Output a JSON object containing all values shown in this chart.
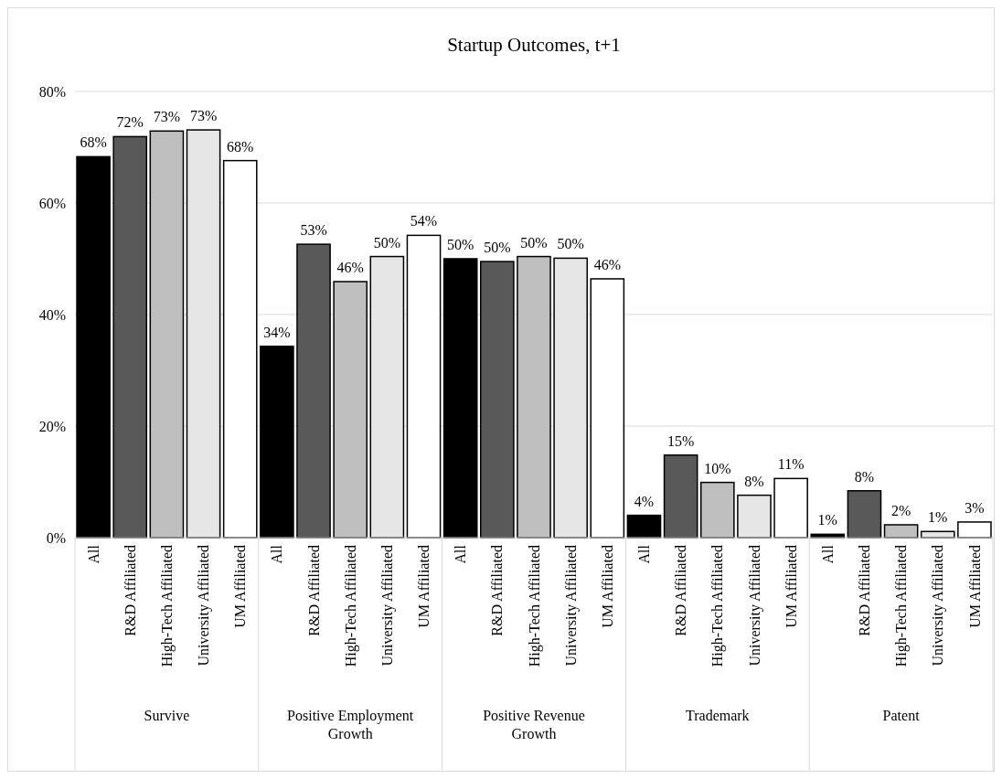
{
  "chart_data": {
    "type": "bar",
    "title": "Startup Outcomes, t+1",
    "categories": [
      "All",
      "R&D Affiliated",
      "High-Tech Affiliated",
      "University Affiliated",
      "UM Affiliated",
      "All",
      "R&D Affiliated",
      "High-Tech Affiliated",
      "University Affiliated",
      "UM Affiliated",
      "All",
      "R&D Affiliated",
      "High-Tech Affiliated",
      "University Affiliated",
      "UM Affiliated",
      "All",
      "R&D Affiliated",
      "High-Tech Affiliated",
      "University Affiliated",
      "UM Affiliated",
      "All",
      "R&D Affiliated",
      "High-Tech Affiliated",
      "University Affiliated",
      "UM Affiliated"
    ],
    "values": [
      68.3,
      71.9,
      72.9,
      73.1,
      67.6,
      34.3,
      52.6,
      45.9,
      50.4,
      54.2,
      50.0,
      49.5,
      50.4,
      50.1,
      46.4,
      4.0,
      14.8,
      9.9,
      7.6,
      10.6,
      0.6,
      8.4,
      2.3,
      1.1,
      2.8
    ],
    "colors": [
      "#000000",
      "#595959",
      "#bfbfbf",
      "#e6e6e6",
      "#ffffff",
      "#000000",
      "#595959",
      "#bfbfbf",
      "#e6e6e6",
      "#ffffff",
      "#000000",
      "#595959",
      "#bfbfbf",
      "#e6e6e6",
      "#ffffff",
      "#000000",
      "#595959",
      "#bfbfbf",
      "#e6e6e6",
      "#ffffff",
      "#000000",
      "#595959",
      "#bfbfbf",
      "#e6e6e6",
      "#ffffff"
    ],
    "value_labels": [
      "68%",
      "72%",
      "73%",
      "73%",
      "68%",
      "34%",
      "53%",
      "46%",
      "50%",
      "54%",
      "50%",
      "50%",
      "50%",
      "50%",
      "46%",
      "4%",
      "15%",
      "10%",
      "8%",
      "11%",
      "1%",
      "8%",
      "2%",
      "1%",
      "3%"
    ],
    "annotations": [
      "Survive",
      "Positive Employment Growth",
      "Positive Revenue Growth",
      "Trademark",
      "Patent"
    ],
    "ylim": [
      0,
      80
    ],
    "yticks": [
      {
        "value": 0,
        "label": "0%"
      },
      {
        "value": 20,
        "label": "20%"
      },
      {
        "value": 40,
        "label": "40%"
      },
      {
        "value": 60,
        "label": "60%"
      },
      {
        "value": 80,
        "label": "80%"
      }
    ],
    "grid": "y"
  }
}
